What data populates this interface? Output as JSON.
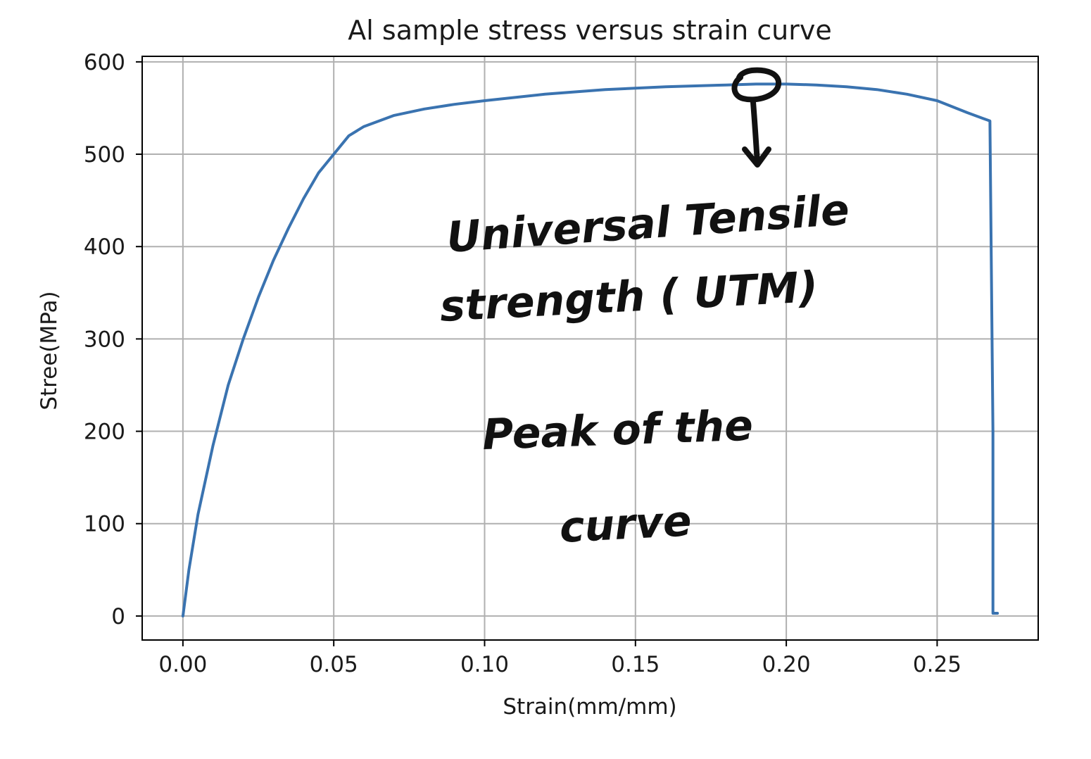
{
  "chart_data": {
    "type": "line",
    "title": "Al sample stress versus strain curve",
    "xlabel": "Strain(mm/mm)",
    "ylabel": "Stree(MPa)",
    "xlim": [
      -0.0135,
      0.2835
    ],
    "ylim": [
      -26,
      606
    ],
    "xticks": [
      "0.00",
      "0.05",
      "0.10",
      "0.15",
      "0.20",
      "0.25"
    ],
    "yticks": [
      "0",
      "100",
      "200",
      "300",
      "400",
      "500",
      "600"
    ],
    "grid": true,
    "color": "#3a73b0",
    "series": [
      {
        "x": [
          0.0,
          0.002,
          0.005,
          0.01,
          0.015,
          0.02,
          0.025,
          0.03,
          0.035,
          0.04,
          0.045,
          0.05,
          0.055,
          0.06,
          0.07,
          0.08,
          0.09,
          0.1,
          0.12,
          0.14,
          0.16,
          0.18,
          0.19,
          0.2,
          0.21,
          0.22,
          0.23,
          0.24,
          0.25,
          0.26,
          0.2675,
          0.2685,
          0.2685,
          0.27
        ],
        "y": [
          0,
          50,
          110,
          185,
          250,
          300,
          345,
          385,
          420,
          452,
          480,
          500,
          520,
          530,
          542,
          549,
          554,
          558,
          565,
          570,
          573,
          575,
          576,
          576,
          575,
          573,
          570,
          565,
          558,
          545,
          536,
          200,
          3,
          3
        ]
      }
    ]
  },
  "annotations": {
    "line1": "Universal Tensile",
    "line2": "strength ( UTM)",
    "line3": "Peak of the",
    "line4": "curve"
  }
}
